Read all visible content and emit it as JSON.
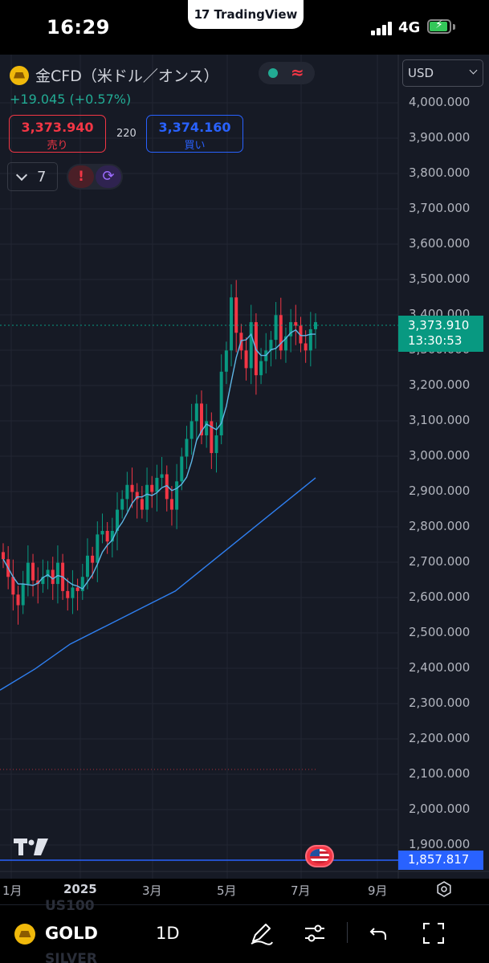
{
  "status_bar": {
    "time": "16:29",
    "app_pill": "TradingView",
    "network": "4G"
  },
  "header": {
    "symbol_name": "金CFD（米ドル／オンス）",
    "change": "+19.045 (+0.57%)",
    "sell_price": "3,373.940",
    "sell_label": "売り",
    "spread": "220",
    "buy_price": "3,374.160",
    "buy_label": "買い",
    "interval_count": "7",
    "currency": "USD"
  },
  "price_axis": {
    "labels": [
      "4,000.000",
      "3,900.000",
      "3,800.000",
      "3,700.000",
      "3,600.000",
      "3,500.000",
      "3,400.000",
      "3,300.000",
      "3,200.000",
      "3,100.000",
      "3,000.000",
      "2,900.000",
      "2,800.000",
      "2,700.000",
      "2,600.000",
      "2,500.000",
      "2,400.000",
      "2,300.000",
      "2,200.000",
      "2,100.000",
      "2,000.000",
      "1,900.000"
    ],
    "current_price": "3,373.910",
    "countdown": "13:30:53",
    "low_line_price": "1,857.817"
  },
  "time_axis": {
    "labels": [
      {
        "text": "1月",
        "bold": false
      },
      {
        "text": "2025",
        "bold": true
      },
      {
        "text": "3月",
        "bold": false
      },
      {
        "text": "5月",
        "bold": false
      },
      {
        "text": "7月",
        "bold": false
      },
      {
        "text": "9月",
        "bold": false
      }
    ]
  },
  "bottom_bar": {
    "symbol": "GOLD",
    "interval": "1D",
    "ghost_above": "US100",
    "ghost_below": "SILVER"
  },
  "colors": {
    "up": "#089981",
    "down": "#f23645",
    "ma_fast": "#5eb7e6",
    "ma_slow": "#2f7ff0",
    "background": "#161a25"
  },
  "chart_data": {
    "type": "candlestick",
    "ylim": [
      1857.817,
      4000
    ],
    "moving_average_slow": [
      2340,
      2400,
      2470,
      2520,
      2570,
      2620,
      2700,
      2780,
      2860,
      2940
    ],
    "closes": [
      2710,
      2660,
      2610,
      2580,
      2640,
      2700,
      2650,
      2640,
      2660,
      2680,
      2640,
      2700,
      2620,
      2600,
      2630,
      2620,
      2660,
      2720,
      2700,
      2780,
      2790,
      2760,
      2790,
      2850,
      2880,
      2920,
      2900,
      2880,
      2850,
      2920,
      2900,
      2940,
      2950,
      2880,
      2850,
      2930,
      3000,
      3050,
      3100,
      3150,
      3060,
      3100,
      3010,
      3060,
      3240,
      3300,
      3450,
      3350,
      3300,
      3250,
      3380,
      3230,
      3270,
      3300,
      3330,
      3400,
      3300,
      3340,
      3380,
      3370,
      3320,
      3300,
      3360,
      3380
    ]
  }
}
